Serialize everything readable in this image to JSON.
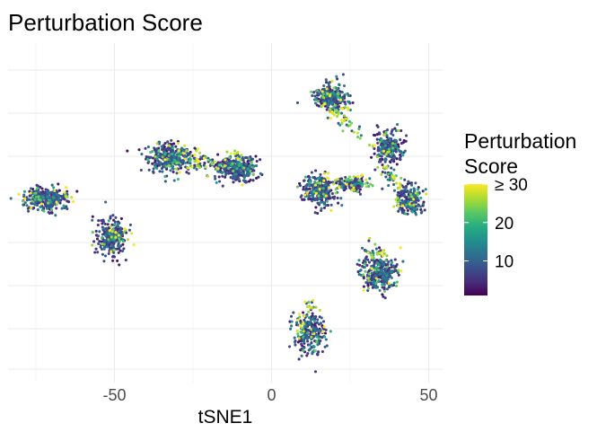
{
  "chart_data": {
    "type": "scatter",
    "title": "Perturbation Score",
    "xlabel": "tSNE1",
    "ylabel": "",
    "xlim": [
      -84,
      54
    ],
    "ylim": [
      -53,
      53
    ],
    "x_ticks": [
      -50,
      0,
      50
    ],
    "x_tick_labels": [
      "-50",
      "0",
      "50"
    ],
    "grid": true,
    "y_tick_labels_shown": false,
    "legend": {
      "title_lines": [
        "Perturbation",
        "Score"
      ],
      "position": "right",
      "type": "colorbar",
      "palette": "viridis",
      "range": [
        1,
        30
      ],
      "ticks": [
        10,
        20,
        30
      ],
      "tick_labels": [
        "10",
        "20",
        "≥ 30"
      ]
    },
    "clusters": [
      {
        "cx": -72,
        "cy": 0,
        "rx": 6.5,
        "ry": 3.5,
        "n": 280,
        "yellow_side": [
          1,
          0.6
        ]
      },
      {
        "cx": -51,
        "cy": -12,
        "rx": 4.5,
        "ry": 5,
        "n": 240,
        "yellow_side": [
          1,
          0.4
        ]
      },
      {
        "cx": -32,
        "cy": 13,
        "rx": 7,
        "ry": 4,
        "n": 330,
        "yellow_side": [
          1,
          1
        ]
      },
      {
        "cx": -11,
        "cy": 10,
        "rx": 6,
        "ry": 4,
        "n": 300,
        "yellow_side": [
          0.3,
          1
        ]
      },
      {
        "cx": 19,
        "cy": 32,
        "rx": 5,
        "ry": 4.5,
        "n": 280,
        "yellow_side": [
          0.5,
          -1
        ]
      },
      {
        "cx": 37,
        "cy": 16,
        "rx": 4,
        "ry": 5,
        "n": 240,
        "yellow_side": [
          -1,
          -0.3
        ]
      },
      {
        "cx": 44,
        "cy": 0,
        "rx": 4,
        "ry": 4,
        "n": 200,
        "yellow_side": [
          -1,
          0
        ]
      },
      {
        "cx": 15,
        "cy": 3,
        "rx": 5,
        "ry": 4.5,
        "n": 260,
        "yellow_side": [
          1,
          1
        ]
      },
      {
        "cx": 26,
        "cy": 5,
        "rx": 4,
        "ry": 2.2,
        "n": 90,
        "yellow_side": [
          0,
          1
        ]
      },
      {
        "cx": 34,
        "cy": -23,
        "rx": 5,
        "ry": 5.5,
        "n": 280,
        "yellow_side": [
          0,
          1
        ]
      },
      {
        "cx": 12,
        "cy": -42,
        "rx": 4.5,
        "ry": 6,
        "n": 250,
        "yellow_side": [
          0,
          1
        ]
      }
    ],
    "bridges": [
      {
        "from": [
          -26,
          12
        ],
        "to": [
          -17,
          10
        ],
        "n": 50
      },
      {
        "from": [
          20,
          28
        ],
        "to": [
          28,
          20
        ],
        "n": 35
      },
      {
        "from": [
          21,
          4
        ],
        "to": [
          32,
          5
        ],
        "n": 30
      },
      {
        "from": [
          35,
          10
        ],
        "to": [
          41,
          4
        ],
        "n": 40
      },
      {
        "from": [
          30,
          -17
        ],
        "to": [
          36,
          -17
        ],
        "n": 20
      },
      {
        "from": [
          12,
          -32
        ],
        "to": [
          13,
          -34
        ],
        "n": 12
      }
    ],
    "seed": 20240611
  }
}
